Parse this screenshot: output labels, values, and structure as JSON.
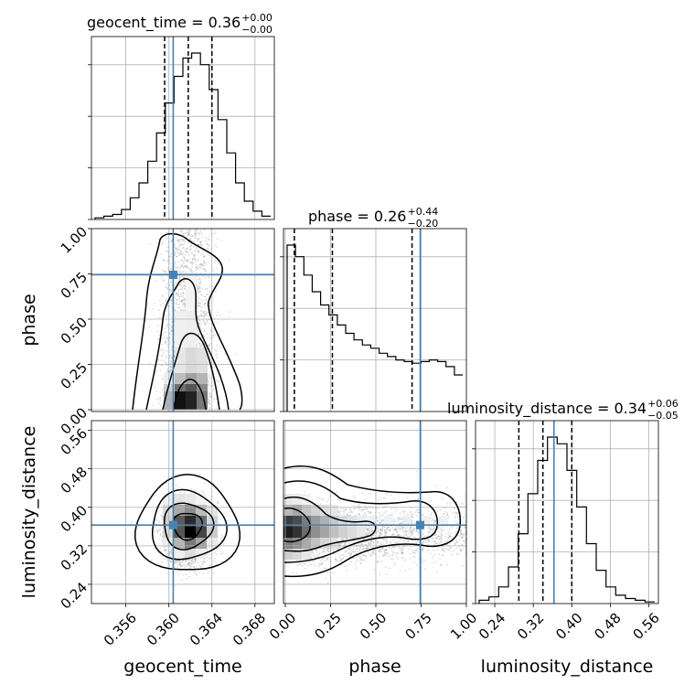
{
  "chart_data": {
    "type": "corner",
    "parameters": [
      "geocent_time",
      "phase",
      "luminosity_distance"
    ],
    "truth_color": "#4682b4",
    "axis_labels": {
      "x": [
        "geocent_time",
        "phase",
        "luminosity_distance"
      ],
      "y_left": [
        "phase",
        "luminosity_distance"
      ]
    },
    "titles": [
      {
        "param": "geocent_time",
        "prefix": "geocent_time = 0.36",
        "plus": "+0.00",
        "minus": "−0.00"
      },
      {
        "param": "phase",
        "prefix": "phase = 0.26",
        "plus": "+0.44",
        "minus": "−0.20"
      },
      {
        "param": "luminosity_distance",
        "prefix": "luminosity_distance = 0.34",
        "plus": "+0.06",
        "minus": "−0.05"
      }
    ],
    "ranges": {
      "geocent_time": [
        0.3528,
        0.3698
      ],
      "phase": [
        -0.01,
        1.0
      ],
      "luminosity_distance": [
        0.2,
        0.58
      ]
    },
    "ticks": {
      "geocent_time": [
        "0.356",
        "0.360",
        "0.364",
        "0.368"
      ],
      "phase": [
        "0.00",
        "0.25",
        "0.50",
        "0.75",
        "1.00"
      ],
      "luminosity_distance": [
        "0.24",
        "0.32",
        "0.40",
        "0.48",
        "0.56"
      ]
    },
    "truths": {
      "geocent_time": 0.3604,
      "phase": 0.745,
      "luminosity_distance": 0.363
    },
    "quantiles": {
      "geocent_time": [
        0.3596,
        0.3618,
        0.364
      ],
      "phase": [
        0.05,
        0.26,
        0.7
      ],
      "luminosity_distance": [
        0.29,
        0.34,
        0.4
      ]
    },
    "histograms": {
      "geocent_time": [
        0.01,
        0.02,
        0.03,
        0.06,
        0.13,
        0.22,
        0.35,
        0.52,
        0.7,
        0.86,
        0.97,
        1.0,
        0.93,
        0.78,
        0.6,
        0.4,
        0.22,
        0.11,
        0.05,
        0.02
      ],
      "phase": [
        1.0,
        0.93,
        0.82,
        0.72,
        0.64,
        0.58,
        0.52,
        0.47,
        0.43,
        0.4,
        0.38,
        0.35,
        0.33,
        0.31,
        0.3,
        0.29,
        0.3,
        0.31,
        0.3,
        0.27,
        0.22
      ],
      "luminosity_distance": [
        0.02,
        0.04,
        0.1,
        0.22,
        0.42,
        0.66,
        0.86,
        1.0,
        0.96,
        0.8,
        0.58,
        0.36,
        0.2,
        0.1,
        0.05,
        0.03,
        0.02,
        0.01
      ]
    }
  }
}
